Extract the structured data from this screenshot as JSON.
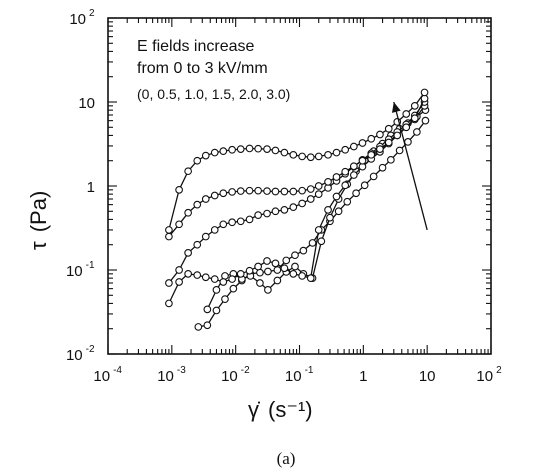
{
  "chart_data": {
    "type": "scatter",
    "title": "",
    "xlabel_symbol": "γ̇",
    "xlabel_unit": "(s⁻¹)",
    "ylabel_symbol": "τ",
    "ylabel_unit": "(Pa)",
    "x_scale": "log",
    "y_scale": "log",
    "xlim": [
      0.0001,
      100
    ],
    "ylim": [
      0.01,
      100
    ],
    "grid": false,
    "x_ticks": [
      {
        "base": "10",
        "exp": "-4"
      },
      {
        "base": "10",
        "exp": "-3"
      },
      {
        "base": "10",
        "exp": "-2"
      },
      {
        "base": "10",
        "exp": "-1"
      },
      {
        "base": "1",
        "exp": ""
      },
      {
        "base": "10",
        "exp": ""
      },
      {
        "base": "10",
        "exp": "2"
      }
    ],
    "y_ticks": [
      {
        "base": "10",
        "exp": "-2"
      },
      {
        "base": "10",
        "exp": "-1"
      },
      {
        "base": "1",
        "exp": ""
      },
      {
        "base": "10",
        "exp": ""
      },
      {
        "base": "10",
        "exp": "2"
      }
    ],
    "annotations": [
      "E fields increase",
      "from 0 to 3 kV/mm",
      "(0, 0.5, 1.0, 1.5, 2.0, 3.0)"
    ],
    "arrow": {
      "from": [
        10,
        0.3
      ],
      "to": [
        3,
        10
      ]
    },
    "caption": "(a)",
    "series": [
      {
        "x": [
          0.0026,
          0.0036,
          0.005,
          0.0068,
          0.0092,
          0.0125,
          0.017,
          0.024,
          0.032,
          0.045,
          0.062,
          0.085,
          0.115,
          0.16,
          0.22,
          0.3,
          0.41,
          0.56,
          0.77,
          1.05,
          1.45,
          2,
          2.7,
          3.7,
          5,
          6.9,
          9.4
        ],
        "y": [
          0.021,
          0.022,
          0.033,
          0.045,
          0.06,
          0.075,
          0.09,
          0.093,
          0.096,
          0.1,
          0.13,
          0.15,
          0.17,
          0.21,
          0.3,
          0.38,
          0.5,
          0.65,
          0.82,
          1.02,
          1.3,
          1.65,
          2.05,
          2.65,
          3.35,
          4.4,
          6.0
        ]
      },
      {
        "x": [
          0.0036,
          0.005,
          0.0068,
          0.0092,
          0.0125,
          0.017,
          0.024,
          0.032,
          0.045,
          0.062,
          0.085,
          0.115,
          0.16,
          0.22,
          0.3,
          0.41,
          0.56,
          0.77,
          1.05,
          1.45,
          2,
          2.7,
          3.7,
          5,
          6.9,
          9.4
        ],
        "y": [
          0.034,
          0.058,
          0.085,
          0.09,
          0.078,
          0.085,
          0.07,
          0.058,
          0.075,
          0.095,
          0.11,
          0.09,
          0.08,
          0.22,
          0.42,
          0.7,
          1.05,
          1.5,
          2.0,
          2.6,
          3.2,
          4.0,
          4.8,
          5.6,
          6.7,
          8.0
        ]
      },
      {
        "x": [
          0.0009,
          0.0013,
          0.0018,
          0.0025,
          0.0034,
          0.0047,
          0.0064,
          0.0088,
          0.012,
          0.0165,
          0.0225,
          0.031,
          0.042,
          0.058,
          0.08,
          0.11,
          0.15,
          0.2,
          0.28,
          0.38,
          0.52,
          0.71,
          0.97,
          1.33,
          1.82,
          2.5,
          3.4,
          4.7,
          6.4,
          9.1
        ],
        "y": [
          0.04,
          0.072,
          0.09,
          0.087,
          0.082,
          0.078,
          0.072,
          0.078,
          0.09,
          0.098,
          0.11,
          0.128,
          0.12,
          0.105,
          0.09,
          0.085,
          0.08,
          0.3,
          0.52,
          0.75,
          1.02,
          1.35,
          1.7,
          2.1,
          2.55,
          3.2,
          4.0,
          5.0,
          6.2,
          9.0
        ]
      },
      {
        "x": [
          0.0009,
          0.0013,
          0.0018,
          0.0025,
          0.0034,
          0.0047,
          0.0064,
          0.0088,
          0.012,
          0.0165,
          0.0225,
          0.031,
          0.042,
          0.058,
          0.08,
          0.11,
          0.15,
          0.2,
          0.28,
          0.38,
          0.52,
          0.71,
          0.97,
          1.33,
          1.82,
          2.5,
          3.4,
          4.7,
          6.4,
          9.1
        ],
        "y": [
          0.07,
          0.1,
          0.16,
          0.2,
          0.25,
          0.3,
          0.35,
          0.37,
          0.38,
          0.4,
          0.45,
          0.47,
          0.5,
          0.52,
          0.56,
          0.62,
          0.7,
          0.8,
          0.95,
          1.15,
          1.4,
          1.7,
          2.05,
          2.45,
          2.95,
          3.6,
          4.4,
          5.4,
          6.9,
          10.0
        ]
      },
      {
        "x": [
          0.0009,
          0.0013,
          0.0018,
          0.0025,
          0.0034,
          0.0047,
          0.0064,
          0.0088,
          0.012,
          0.0165,
          0.0225,
          0.031,
          0.042,
          0.058,
          0.08,
          0.11,
          0.15,
          0.2,
          0.28,
          0.38,
          0.52,
          0.71,
          0.97,
          1.33,
          1.82,
          2.5,
          3.4,
          4.7,
          6.4,
          9.1
        ],
        "y": [
          0.25,
          0.35,
          0.48,
          0.6,
          0.7,
          0.77,
          0.82,
          0.85,
          0.87,
          0.88,
          0.88,
          0.87,
          0.86,
          0.86,
          0.86,
          0.88,
          0.92,
          1.0,
          1.12,
          1.28,
          1.48,
          1.72,
          2.0,
          2.35,
          2.75,
          3.3,
          4.0,
          5.0,
          6.4,
          11.0
        ]
      },
      {
        "x": [
          0.0009,
          0.0013,
          0.0018,
          0.0025,
          0.0034,
          0.0047,
          0.0064,
          0.0088,
          0.012,
          0.0165,
          0.0225,
          0.031,
          0.042,
          0.058,
          0.08,
          0.11,
          0.15,
          0.2,
          0.28,
          0.38,
          0.52,
          0.71,
          0.97,
          1.33,
          1.82,
          2.5,
          3.4,
          4.7,
          6.4,
          9.1
        ],
        "y": [
          0.3,
          0.9,
          1.5,
          2.0,
          2.3,
          2.5,
          2.6,
          2.7,
          2.75,
          2.8,
          2.78,
          2.75,
          2.65,
          2.5,
          2.35,
          2.25,
          2.2,
          2.25,
          2.35,
          2.5,
          2.7,
          2.95,
          3.25,
          3.65,
          4.1,
          4.8,
          5.8,
          7.2,
          9.0,
          13.0
        ]
      }
    ]
  }
}
